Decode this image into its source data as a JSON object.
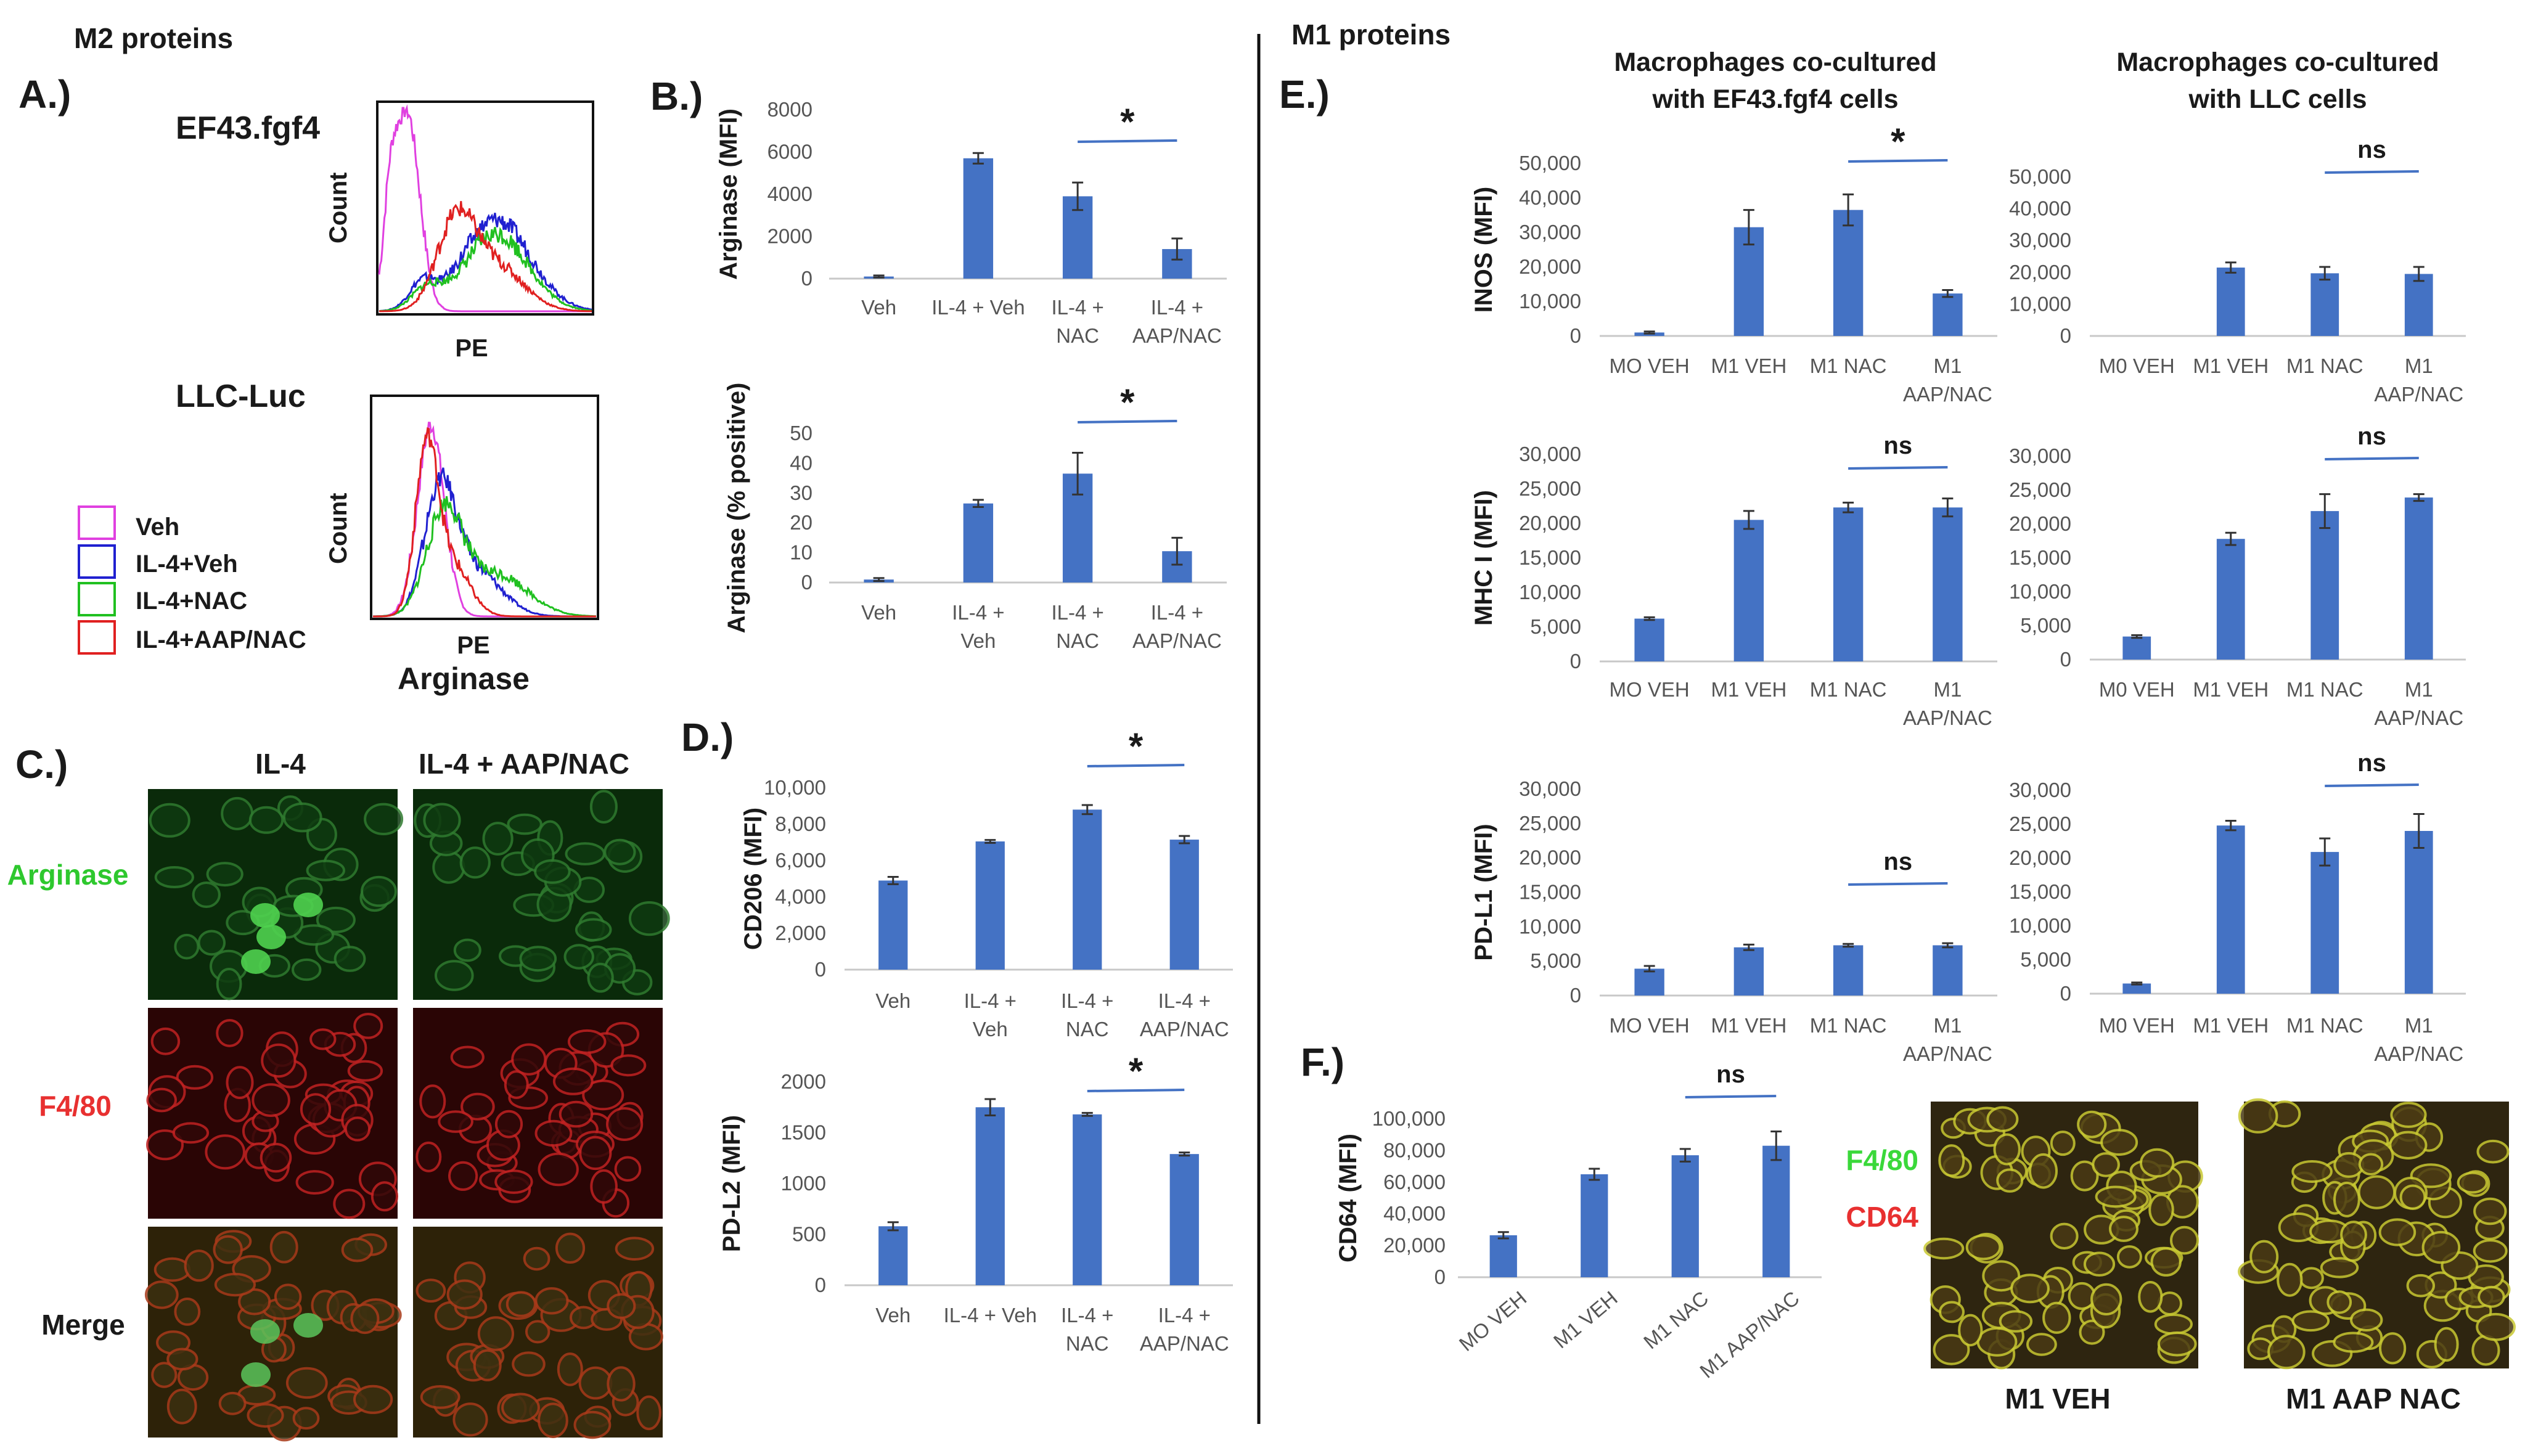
{
  "headers": {
    "m2": "M2 proteins",
    "m1": "M1 proteins"
  },
  "colors": {
    "bar": "#4472C4",
    "sigline": "#4472C4",
    "veh": "#e040e0",
    "il4veh": "#2020d0",
    "il4nac": "#20c020",
    "il4aapnac": "#e02020",
    "micro_green": "#2ea02e",
    "micro_red": "#e83030"
  },
  "panelA": {
    "label": "A.)",
    "top_title": "EF43.fgf4",
    "bottom_title": "LLC-Luc",
    "ylabel": "Count",
    "xlabel": "PE",
    "xlabel2": "Arginase",
    "legend": [
      {
        "name": "Veh",
        "color": "#e040e0"
      },
      {
        "name": "IL-4+Veh",
        "color": "#2020d0"
      },
      {
        "name": "IL-4+NAC",
        "color": "#20c020"
      },
      {
        "name": "IL-4+AAP/NAC",
        "color": "#e02020"
      }
    ]
  },
  "panelC": {
    "label": "C.)",
    "col1": "IL-4",
    "col2": "IL-4 + AAP/NAC",
    "row1": "Arginase",
    "row2": "F4/80",
    "row3": "Merge"
  },
  "panelF": {
    "label": "F.)",
    "stain1": "F4/80",
    "stain2": "CD64",
    "img1": "M1 VEH",
    "img2": "M1 AAP NAC"
  },
  "chart_data": [
    {
      "id": "b1",
      "type": "bar",
      "panel": "B.)",
      "ylabel": "Arginase (MFI)",
      "categories": [
        "Veh",
        "IL-4 + Veh",
        "IL-4 +\nNAC",
        "IL-4 +\nAAP/NAC"
      ],
      "values": [
        100,
        5700,
        3900,
        1400
      ],
      "errors": [
        50,
        250,
        650,
        500
      ],
      "ylim": [
        0,
        8000
      ],
      "ticks": [
        "0",
        "2000",
        "4000",
        "6000",
        "8000"
      ],
      "sig": "*"
    },
    {
      "id": "b2",
      "type": "bar",
      "ylabel": "Arginase (% positive)",
      "categories": [
        "Veh",
        "IL-4 +\nVeh",
        "IL-4 +\nNAC",
        "IL-4 +\nAAP/NAC"
      ],
      "values": [
        1,
        26.5,
        36.5,
        10.5
      ],
      "errors": [
        0.5,
        1.2,
        7,
        4.5
      ],
      "ylim": [
        0,
        50
      ],
      "ticks": [
        "0",
        "10",
        "20",
        "30",
        "40",
        "50"
      ],
      "sig": "*"
    },
    {
      "id": "d1",
      "type": "bar",
      "panel": "D.)",
      "ylabel": "CD206 (MFI)",
      "categories": [
        "Veh",
        "IL-4 +\nVeh",
        "IL-4 +\nNAC",
        "IL-4 +\nAAP/NAC"
      ],
      "values": [
        4900,
        7050,
        8800,
        7150
      ],
      "errors": [
        200,
        80,
        250,
        200
      ],
      "ylim": [
        0,
        10000
      ],
      "ticks": [
        "0",
        "2,000",
        "4,000",
        "6,000",
        "8,000",
        "10,000"
      ],
      "sig": "*"
    },
    {
      "id": "d2",
      "type": "bar",
      "ylabel": "PD-L2 (MFI)",
      "categories": [
        "Veh",
        "IL-4 + Veh",
        "IL-4 +\nNAC",
        "IL-4 +\nAAP/NAC"
      ],
      "values": [
        580,
        1750,
        1680,
        1290
      ],
      "errors": [
        40,
        80,
        15,
        15
      ],
      "ylim": [
        0,
        2000
      ],
      "ticks": [
        "0",
        "500",
        "1000",
        "1500",
        "2000"
      ],
      "sig": "*"
    },
    {
      "id": "e1",
      "type": "bar",
      "panel": "E.)",
      "title": "Macrophages co-cultured\nwith EF43.fgf4 cells",
      "ylabel": "INOS (MFI)",
      "categories": [
        "MO VEH",
        "M1 VEH",
        "M1 NAC",
        "M1\nAAP/NAC"
      ],
      "values": [
        1000,
        31500,
        36500,
        12300
      ],
      "errors": [
        300,
        5000,
        4500,
        1000
      ],
      "ylim": [
        0,
        50000
      ],
      "ticks": [
        "0",
        "10,000",
        "20,000",
        "30,000",
        "40,000",
        "50,000"
      ],
      "sig": "*"
    },
    {
      "id": "e2",
      "type": "bar",
      "title": "Macrophages co-cultured\nwith LLC cells",
      "categories": [
        "M0 VEH",
        "M1 VEH",
        "M1 NAC",
        "M1\nAAP/NAC"
      ],
      "values": [
        0,
        21500,
        19700,
        19500
      ],
      "errors": [
        0,
        1600,
        2000,
        2200
      ],
      "ylim": [
        0,
        50000
      ],
      "ticks": [
        "0",
        "10,000",
        "20,000",
        "30,000",
        "40,000",
        "50,000"
      ],
      "sig": "ns"
    },
    {
      "id": "e3",
      "type": "bar",
      "ylabel": "MHC I (MFI)",
      "categories": [
        "MO VEH",
        "M1 VEH",
        "M1 NAC",
        "M1\nAAP/NAC"
      ],
      "values": [
        6200,
        20500,
        22300,
        22300
      ],
      "errors": [
        200,
        1300,
        700,
        1300
      ],
      "ylim": [
        0,
        30000
      ],
      "ticks": [
        "0",
        "5,000",
        "10,000",
        "15,000",
        "20,000",
        "25,000",
        "30,000"
      ],
      "sig": "ns"
    },
    {
      "id": "e4",
      "type": "bar",
      "categories": [
        "M0 VEH",
        "M1 VEH",
        "M1 NAC",
        "M1\nAAP/NAC"
      ],
      "values": [
        3400,
        17800,
        21900,
        23900
      ],
      "errors": [
        200,
        900,
        2500,
        500
      ],
      "ylim": [
        0,
        30000
      ],
      "ticks": [
        "0",
        "5,000",
        "10,000",
        "15,000",
        "20,000",
        "25,000",
        "30,000"
      ],
      "sig": "ns"
    },
    {
      "id": "e5",
      "type": "bar",
      "ylabel": "PD-L1 (MFI)",
      "categories": [
        "MO VEH",
        "M1 VEH",
        "M1 NAC",
        "M1\nAAP/NAC"
      ],
      "values": [
        3900,
        7000,
        7300,
        7300
      ],
      "errors": [
        400,
        400,
        200,
        300
      ],
      "ylim": [
        0,
        30000
      ],
      "ticks": [
        "0",
        "5,000",
        "10,000",
        "15,000",
        "20,000",
        "25,000",
        "30,000"
      ],
      "sig": "ns"
    },
    {
      "id": "e6",
      "type": "bar",
      "categories": [
        "M0 VEH",
        "M1 VEH",
        "M1 NAC",
        "M1\nAAP/NAC"
      ],
      "values": [
        1500,
        24800,
        20900,
        24000
      ],
      "errors": [
        150,
        700,
        2000,
        2500
      ],
      "ylim": [
        0,
        30000
      ],
      "ticks": [
        "0",
        "5,000",
        "10,000",
        "15,000",
        "20,000",
        "25,000",
        "30,000"
      ],
      "sig": "ns"
    },
    {
      "id": "f1",
      "type": "bar",
      "ylabel": "CD64 (MFI)",
      "categories": [
        "MO VEH",
        "M1 VEH",
        "M1 NAC",
        "M1 AAP/NAC"
      ],
      "values": [
        26500,
        65000,
        77000,
        83000
      ],
      "errors": [
        2000,
        3500,
        4000,
        9000
      ],
      "ylim": [
        0,
        100000
      ],
      "ticks": [
        "0",
        "20,000",
        "40,000",
        "60,000",
        "80,000",
        "100,000"
      ],
      "sig": "ns",
      "rotated": true
    }
  ]
}
